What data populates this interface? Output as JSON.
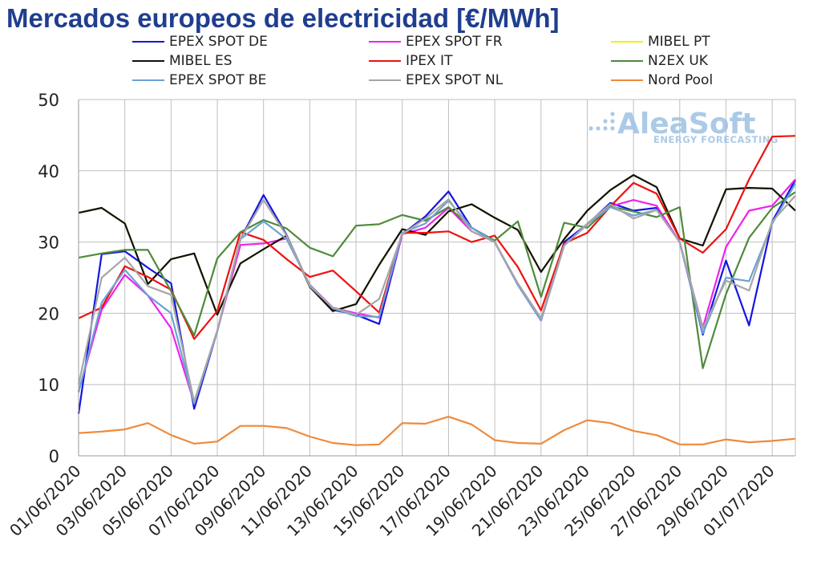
{
  "title": "Mercados europeos de electricidad [€/MWh]",
  "logo": {
    "name": "AleaSoft",
    "tagline": "ENERGY FORECASTING"
  },
  "chart_data": {
    "type": "line",
    "title": "Mercados europeos de electricidad [€/MWh]",
    "xlabel": "",
    "ylabel": "",
    "ylim": [
      0,
      50
    ],
    "yticks": [
      0,
      10,
      20,
      30,
      40,
      50
    ],
    "grid": true,
    "legend_position": "top",
    "x": [
      "01/06/2020",
      "02/06/2020",
      "03/06/2020",
      "04/06/2020",
      "05/06/2020",
      "06/06/2020",
      "07/06/2020",
      "08/06/2020",
      "09/06/2020",
      "10/06/2020",
      "11/06/2020",
      "12/06/2020",
      "13/06/2020",
      "14/06/2020",
      "15/06/2020",
      "16/06/2020",
      "17/06/2020",
      "18/06/2020",
      "19/06/2020",
      "20/06/2020",
      "21/06/2020",
      "22/06/2020",
      "23/06/2020",
      "24/06/2020",
      "25/06/2020",
      "26/06/2020",
      "27/06/2020",
      "28/06/2020",
      "29/06/2020",
      "30/06/2020",
      "01/07/2020",
      "02/07/2020"
    ],
    "xtick_labels": [
      "01/06/2020",
      "03/06/2020",
      "05/06/2020",
      "07/06/2020",
      "09/06/2020",
      "11/06/2020",
      "13/06/2020",
      "15/06/2020",
      "17/06/2020",
      "19/06/2020",
      "21/06/2020",
      "23/06/2020",
      "25/06/2020",
      "27/06/2020",
      "29/06/2020",
      "01/07/2020"
    ],
    "series": [
      {
        "name": "EPEX SPOT DE",
        "color": "#1515e0",
        "values": [
          5.9,
          28.3,
          28.7,
          26.4,
          24.2,
          6.6,
          17.5,
          30.4,
          36.6,
          31.0,
          23.8,
          20.5,
          19.8,
          18.5,
          31.1,
          33.6,
          37.1,
          32.0,
          30.0,
          24.0,
          19.0,
          30.0,
          32.5,
          35.5,
          34.4,
          34.8,
          30.0,
          17.0,
          27.4,
          18.3,
          32.9,
          38.7
        ]
      },
      {
        "name": "EPEX SPOT FR",
        "color": "#ee22ee",
        "values": [
          9.0,
          20.5,
          25.4,
          22.5,
          17.9,
          7.4,
          17.5,
          29.6,
          29.8,
          30.5,
          24.0,
          20.8,
          20.0,
          19.4,
          31.1,
          32.0,
          34.8,
          31.5,
          30.0,
          24.0,
          19.0,
          29.5,
          32.5,
          35.0,
          35.9,
          35.1,
          30.0,
          18.0,
          29.3,
          34.4,
          35.1,
          38.8
        ]
      },
      {
        "name": "MIBEL PT",
        "color": "#f2f200",
        "values": [
          34.1,
          34.8,
          32.6,
          24.1,
          27.6,
          28.4,
          19.8,
          27.0,
          29.0,
          30.9,
          23.7,
          20.3,
          21.3,
          26.8,
          31.8,
          31.0,
          34.3,
          35.3,
          33.4,
          31.7,
          25.8,
          30.4,
          34.4,
          37.3,
          39.4,
          37.7,
          30.5,
          29.5,
          37.4,
          37.6,
          37.5,
          34.4
        ]
      },
      {
        "name": "MIBEL ES",
        "color": "#111111",
        "values": [
          34.1,
          34.8,
          32.6,
          24.1,
          27.6,
          28.4,
          19.8,
          27.0,
          29.0,
          30.9,
          23.7,
          20.3,
          21.3,
          26.8,
          31.8,
          31.0,
          34.3,
          35.3,
          33.4,
          31.7,
          25.8,
          30.4,
          34.4,
          37.3,
          39.4,
          37.7,
          30.5,
          29.5,
          37.4,
          37.6,
          37.5,
          34.4
        ]
      },
      {
        "name": "IPEX IT",
        "color": "#ee1111",
        "values": [
          19.3,
          20.8,
          26.6,
          25.1,
          23.3,
          16.4,
          20.3,
          31.4,
          30.3,
          27.6,
          25.1,
          26.0,
          23.1,
          20.1,
          31.3,
          31.3,
          31.5,
          30.0,
          30.9,
          26.5,
          20.4,
          29.8,
          31.3,
          35.0,
          38.3,
          36.8,
          30.5,
          28.5,
          31.8,
          38.8,
          44.8,
          44.9
        ]
      },
      {
        "name": "N2EX UK",
        "color": "#4f8b3b",
        "values": [
          27.8,
          28.4,
          28.9,
          28.9,
          23.1,
          16.9,
          27.7,
          31.4,
          33.1,
          31.9,
          29.2,
          28.0,
          32.3,
          32.5,
          33.8,
          33.0,
          34.9,
          32.0,
          30.2,
          32.9,
          22.3,
          32.7,
          32.0,
          35.0,
          34.3,
          33.5,
          34.9,
          12.3,
          22.7,
          30.6,
          34.8,
          37.0
        ]
      },
      {
        "name": "EPEX SPOT BE",
        "color": "#6ca2d3",
        "values": [
          8.9,
          21.5,
          26.1,
          22.5,
          20.0,
          7.3,
          17.5,
          30.4,
          32.9,
          30.4,
          24.0,
          20.7,
          19.6,
          19.5,
          31.3,
          32.6,
          35.8,
          32.0,
          30.0,
          24.0,
          19.0,
          29.5,
          32.5,
          34.9,
          33.7,
          34.5,
          30.0,
          17.2,
          25.0,
          24.5,
          32.6,
          38.2
        ]
      },
      {
        "name": "EPEX SPOT NL",
        "color": "#a6a6a6",
        "values": [
          10.0,
          25.0,
          27.8,
          23.8,
          22.6,
          7.6,
          17.6,
          30.4,
          35.9,
          30.9,
          23.8,
          20.8,
          19.8,
          22.0,
          31.1,
          33.3,
          36.0,
          31.5,
          30.0,
          24.2,
          19.3,
          29.5,
          32.6,
          35.3,
          33.3,
          34.5,
          30.0,
          17.9,
          24.6,
          23.2,
          32.9,
          36.5
        ]
      },
      {
        "name": "Nord Pool",
        "color": "#ef8a3c",
        "values": [
          3.2,
          3.4,
          3.7,
          4.6,
          2.9,
          1.7,
          2.0,
          4.2,
          4.2,
          3.9,
          2.7,
          1.8,
          1.5,
          1.6,
          4.6,
          4.5,
          5.5,
          4.4,
          2.2,
          1.8,
          1.7,
          3.6,
          5.0,
          4.6,
          3.5,
          2.9,
          1.6,
          1.6,
          2.3,
          1.9,
          2.1,
          2.4
        ]
      }
    ]
  }
}
